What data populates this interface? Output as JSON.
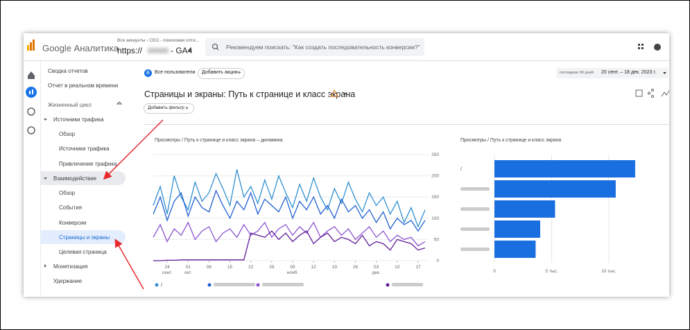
{
  "header": {
    "product": "Google Аналитика",
    "account_path": "Все аккаунты › CEO - поисковая опти...",
    "property_prefix": "https://",
    "property_suffix": "- GA4",
    "search_placeholder": "Рекомендуем поискать: \"Как создать последовательность конверсии?\""
  },
  "sidebar": {
    "items": [
      "Сводка отчетов",
      "Отчет в реальном времени",
      "Жизненный цикл",
      "Источники трафика",
      "Обзор",
      "Источники трафика",
      "Привлечение трафика",
      "Взаимодействие",
      "Обзор",
      "События",
      "Конверсии",
      "Страницы и экраны",
      "Целевая страница",
      "Монетизация",
      "Удержание"
    ]
  },
  "toolbar": {
    "segment_badge": "В",
    "segment": "Все пользователи",
    "add_comparison": "Добавить акции",
    "date_range_label": "последние 90 дней",
    "date_range": "20 сент. – 18 дек. 2023 г."
  },
  "report": {
    "title": "Страницы и экраны: Путь к странице и класс экрана",
    "add_filter": "Добавить фильтр"
  },
  "charts": [
    {
      "type": "line",
      "title": "Просмотры / Путь к странице и класс экрана – динамика",
      "categories": [
        null,
        null,
        "24\nсент.",
        null,
        null,
        "01\nокт.",
        null,
        null,
        "08",
        null,
        null,
        "15",
        null,
        null,
        "22",
        null,
        null,
        "29",
        null,
        null,
        "05\nнояб.",
        null,
        null,
        "12",
        null,
        null,
        "19",
        null,
        null,
        "26",
        null,
        null,
        "03\nдек.",
        null,
        null,
        "10",
        null,
        null,
        "17",
        null
      ],
      "ylim": [
        0,
        250
      ],
      "yticks": [
        0,
        50,
        100,
        150,
        200,
        250
      ],
      "grid": true,
      "series": [
        {
          "name": "/",
          "color": "#2e8fd0",
          "values": [
            130,
            175,
            110,
            200,
            150,
            120,
            185,
            140,
            160,
            205,
            170,
            130,
            215,
            150,
            175,
            135,
            190,
            145,
            200,
            160,
            125,
            180,
            140,
            195,
            150,
            120,
            170,
            135,
            185,
            145,
            115,
            160,
            130,
            150,
            110,
            140,
            90,
            125,
            80,
            120
          ]
        },
        {
          "name": null,
          "color": "#1f5fd0",
          "values": [
            110,
            150,
            95,
            140,
            160,
            105,
            150,
            125,
            115,
            165,
            130,
            100,
            140,
            120,
            160,
            110,
            145,
            130,
            115,
            150,
            100,
            140,
            120,
            150,
            110,
            130,
            100,
            145,
            115,
            130,
            100,
            120,
            90,
            115,
            75,
            100,
            85,
            95,
            70,
            95
          ]
        },
        {
          "name": null,
          "color": "#8a52d0",
          "values": [
            55,
            85,
            45,
            75,
            60,
            90,
            50,
            70,
            80,
            45,
            65,
            75,
            55,
            85,
            60,
            70,
            90,
            55,
            75,
            85,
            60,
            80,
            65,
            90,
            55,
            70,
            80,
            60,
            75,
            50,
            65,
            80,
            55,
            70,
            45,
            60,
            50,
            55,
            35,
            45
          ]
        },
        {
          "name": null,
          "color": "#5e1c96",
          "values": [
            0,
            0,
            1,
            1,
            2,
            2,
            2,
            2,
            2,
            2,
            2,
            2,
            2,
            2,
            65,
            60,
            55,
            70,
            50,
            65,
            45,
            60,
            70,
            40,
            55,
            65,
            45,
            55,
            50,
            40,
            60,
            35,
            45,
            40,
            25,
            50,
            45,
            40,
            25,
            30
          ]
        }
      ]
    },
    {
      "type": "bar",
      "title": "Просмотры / Путь к странице и класс экрана",
      "categories": [
        "/",
        null,
        null,
        null,
        null
      ],
      "values": [
        12300,
        10600,
        5300,
        4000,
        3600
      ],
      "color": "#1a6fe0",
      "xlim": [
        0,
        13000
      ],
      "xticks": [
        0,
        {
          "value": 5000,
          "label": "5 тыс."
        },
        {
          "value": 10000,
          "label": "10 тыс."
        }
      ],
      "grid": true
    }
  ]
}
